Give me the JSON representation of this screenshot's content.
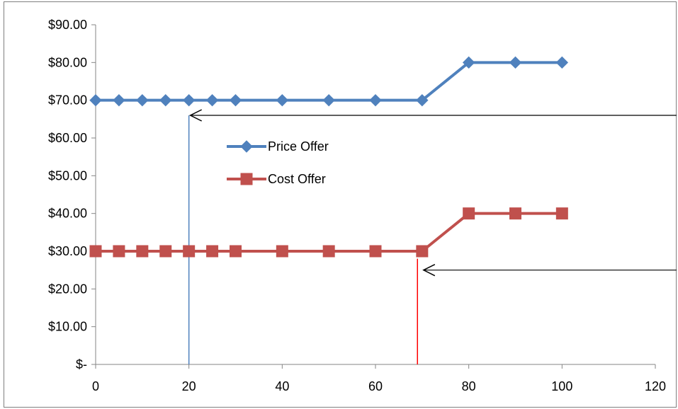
{
  "chart_data": {
    "type": "line",
    "title": "",
    "xlabel": "",
    "ylabel": "",
    "xlim": [
      0,
      120
    ],
    "ylim": [
      0,
      90
    ],
    "x_ticks": [
      0,
      20,
      40,
      60,
      80,
      100,
      120
    ],
    "y_ticks": [
      0,
      10,
      20,
      30,
      40,
      50,
      60,
      70,
      80,
      90
    ],
    "x_tick_labels": [
      "0",
      "20",
      "40",
      "60",
      "80",
      "100",
      "120"
    ],
    "y_tick_labels": [
      "$-",
      "$10.00",
      "$20.00",
      "$30.00",
      "$40.00",
      "$50.00",
      "$60.00",
      "$70.00",
      "$80.00",
      "$90.00"
    ],
    "grid": false,
    "legend_position": "center-left",
    "series": [
      {
        "name": "Price Offer",
        "color": "#4f81bd",
        "marker": "diamond",
        "x": [
          0,
          5,
          10,
          15,
          20,
          25,
          30,
          40,
          50,
          60,
          70,
          80,
          90,
          100
        ],
        "y": [
          70,
          70,
          70,
          70,
          70,
          70,
          70,
          70,
          70,
          70,
          70,
          80,
          80,
          80
        ]
      },
      {
        "name": "Cost Offer",
        "color": "#c0504d",
        "marker": "square",
        "x": [
          0,
          5,
          10,
          15,
          20,
          25,
          30,
          40,
          50,
          60,
          70,
          80,
          90,
          100
        ],
        "y": [
          30,
          30,
          30,
          30,
          30,
          30,
          30,
          30,
          30,
          30,
          30,
          40,
          40,
          40
        ]
      }
    ],
    "annotations": [
      {
        "type": "vertical-line",
        "x": 20,
        "y_from": 0,
        "y_to": 66,
        "color": "#4f81bd"
      },
      {
        "type": "vertical-line",
        "x": 69,
        "y_from": 0,
        "y_to": 28,
        "color": "#ff0000"
      },
      {
        "type": "arrow",
        "y": 66,
        "x_from": "right-edge",
        "x_to": 20,
        "color": "#000000"
      },
      {
        "type": "arrow",
        "y": 25,
        "x_from": "right-edge",
        "x_to": 70,
        "color": "#000000"
      }
    ]
  }
}
